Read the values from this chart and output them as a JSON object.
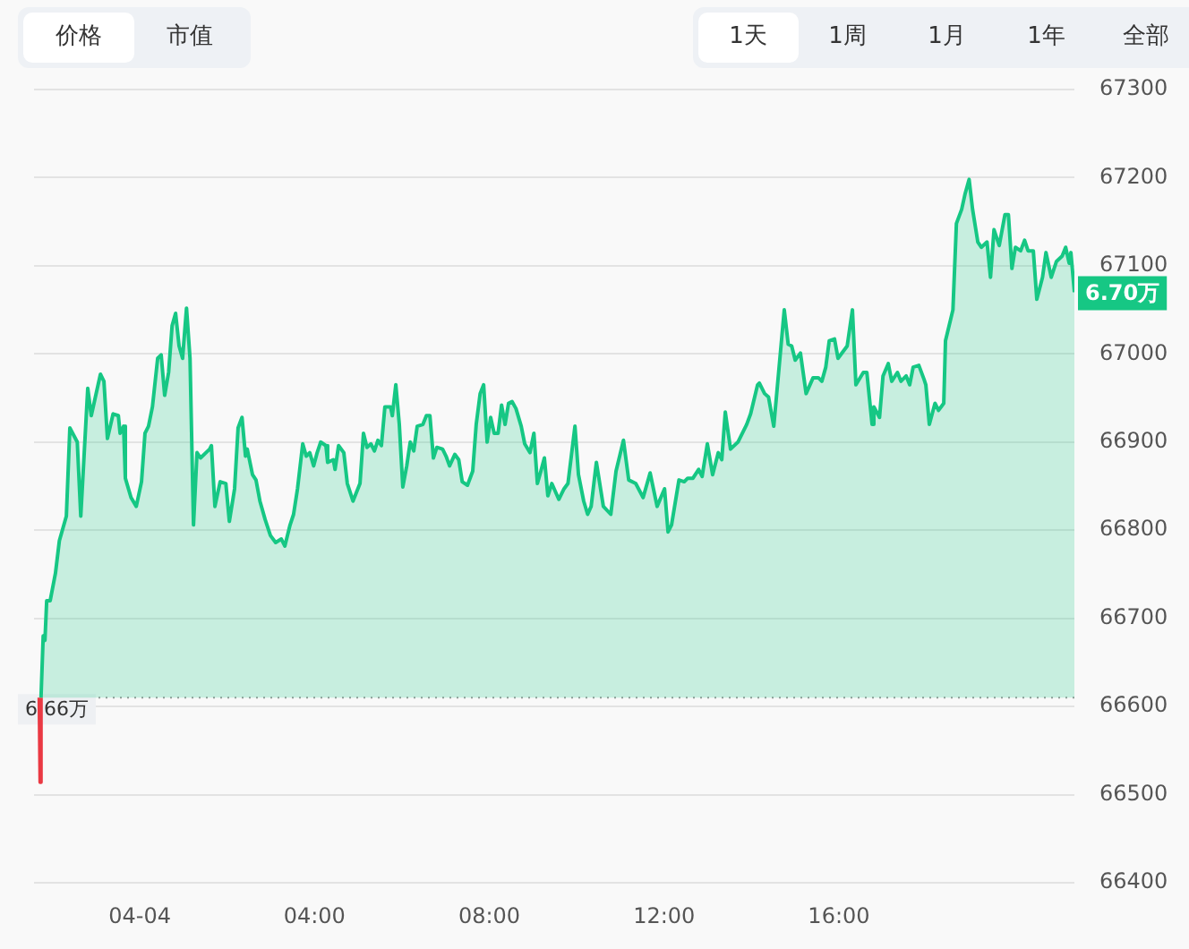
{
  "chart_data": {
    "type": "area",
    "legend": false,
    "grid": "y",
    "marker": "none",
    "xlim": [
      -2.42,
      21.39
    ],
    "ylim": [
      66400,
      67300
    ],
    "xticks": [
      {
        "value": 0,
        "label": "04-04"
      },
      {
        "value": 4,
        "label": "04:00"
      },
      {
        "value": 8,
        "label": "08:00"
      },
      {
        "value": 12,
        "label": "12:00"
      },
      {
        "value": 16,
        "label": "16:00"
      }
    ],
    "yticks": [
      66400,
      66500,
      66600,
      66700,
      66800,
      66900,
      67000,
      67100,
      67200,
      67300
    ],
    "ref_lines": [
      {
        "axis": "y",
        "value": 66610,
        "label": "6.66万",
        "color": "#999999",
        "line_style": "dotted"
      }
    ],
    "annotations": [
      "价格",
      "市值",
      "1天",
      "1周",
      "1月",
      "1年",
      "全部",
      {
        "text": "6.70万",
        "x": 21.39,
        "y": 67070
      }
    ],
    "series": [
      {
        "color": "#16c784",
        "x": [
          -2.26,
          -2.21,
          -2.17,
          -2.13,
          -2.05,
          -1.93,
          -1.84,
          -1.68,
          -1.6,
          -1.43,
          -1.35,
          -1.19,
          -1.11,
          -0.9,
          -0.82,
          -0.74,
          -0.61,
          -0.49,
          -0.45,
          -0.37,
          -0.33,
          -0.2,
          -0.08,
          0.04,
          0.12,
          0.2,
          0.29,
          0.41,
          0.49,
          0.57,
          0.66,
          0.74,
          0.82,
          0.9,
          0.98,
          1.07,
          1.15,
          1.23,
          1.31,
          1.39,
          1.6,
          1.64,
          1.72,
          1.84,
          1.97,
          2.05,
          2.17,
          2.25,
          2.34,
          2.42,
          2.46,
          2.58,
          2.66,
          2.75,
          2.87,
          2.99,
          3.11,
          3.24,
          3.32,
          3.44,
          3.52,
          3.61,
          3.73,
          3.81,
          3.89,
          3.98,
          4.06,
          4.14,
          4.26,
          4.3,
          4.43,
          4.47,
          4.55,
          4.67,
          4.75,
          4.88,
          5.04,
          5.12,
          5.2,
          5.29,
          5.37,
          5.45,
          5.53,
          5.61,
          5.74,
          5.78,
          5.86,
          5.94,
          6.02,
          6.11,
          6.19,
          6.27,
          6.35,
          6.48,
          6.56,
          6.64,
          6.72,
          6.8,
          6.93,
          7.01,
          7.09,
          7.21,
          7.3,
          7.38,
          7.5,
          7.62,
          7.7,
          7.79,
          7.87,
          7.95,
          8.03,
          8.11,
          8.2,
          8.28,
          8.36,
          8.44,
          8.52,
          8.61,
          8.73,
          8.81,
          8.93,
          9.02,
          9.1,
          9.18,
          9.26,
          9.34,
          9.43,
          9.59,
          9.71,
          9.8,
          9.96,
          10.04,
          10.16,
          10.25,
          10.33,
          10.45,
          10.61,
          10.78,
          10.9,
          11.07,
          11.19,
          11.35,
          11.52,
          11.68,
          11.84,
          12.01,
          12.09,
          12.17,
          12.34,
          12.46,
          12.54,
          12.66,
          12.79,
          12.87,
          12.99,
          13.11,
          13.24,
          13.32,
          13.4,
          13.52,
          13.69,
          13.89,
          13.98,
          14.14,
          14.18,
          14.3,
          14.39,
          14.51,
          14.75,
          14.84,
          14.92,
          15.0,
          15.12,
          15.25,
          15.41,
          15.53,
          15.61,
          15.7,
          15.78,
          15.9,
          15.98,
          16.19,
          16.31,
          16.39,
          16.56,
          16.64,
          16.76,
          16.8,
          16.93,
          17.01,
          17.13,
          17.21,
          17.34,
          17.42,
          17.54,
          17.62,
          17.7,
          17.83,
          17.95,
          17.99,
          18.07,
          18.2,
          18.28,
          18.4,
          18.44,
          18.61,
          18.69,
          18.81,
          18.89,
          18.98,
          19.06,
          19.18,
          19.26,
          19.39,
          19.47,
          19.55,
          19.67,
          19.8,
          19.88,
          19.96,
          20.04,
          20.16,
          20.25,
          20.33,
          20.45,
          20.53,
          20.66,
          20.74,
          20.86,
          20.98,
          21.11,
          21.19,
          21.27,
          21.31,
          21.39
        ],
        "values": [
          66610,
          66680,
          66675,
          66720,
          66720,
          66751,
          66788,
          66816,
          66916,
          66900,
          66816,
          66961,
          66930,
          66977,
          66969,
          66904,
          66932,
          66930,
          66910,
          66918,
          66859,
          66837,
          66827,
          66855,
          66910,
          66918,
          66940,
          66995,
          66999,
          66953,
          66979,
          67032,
          67046,
          67009,
          66995,
          67052,
          66995,
          66806,
          66888,
          66882,
          66892,
          66896,
          66827,
          66855,
          66853,
          66810,
          66847,
          66916,
          66928,
          66884,
          66892,
          66863,
          66857,
          66833,
          66812,
          66794,
          66786,
          66790,
          66782,
          66806,
          66818,
          66847,
          66898,
          66884,
          66888,
          66873,
          66888,
          66900,
          66896,
          66877,
          66880,
          66869,
          66896,
          66888,
          66853,
          66833,
          66853,
          66910,
          66894,
          66898,
          66890,
          66902,
          66896,
          66940,
          66940,
          66930,
          66965,
          66920,
          66849,
          66873,
          66900,
          66890,
          66918,
          66920,
          66930,
          66930,
          66882,
          66894,
          66892,
          66884,
          66873,
          66886,
          66880,
          66855,
          66851,
          66867,
          66920,
          66955,
          66965,
          66900,
          66928,
          66910,
          66910,
          66942,
          66920,
          66944,
          66946,
          66938,
          66918,
          66898,
          66888,
          66910,
          66853,
          66867,
          66882,
          66839,
          66853,
          66835,
          66847,
          66853,
          66918,
          66863,
          66833,
          66818,
          66827,
          66877,
          66827,
          66818,
          66867,
          66902,
          66857,
          66853,
          66837,
          66865,
          66827,
          66847,
          66798,
          66806,
          66857,
          66855,
          66859,
          66859,
          66869,
          66861,
          66898,
          66863,
          66888,
          66880,
          66934,
          66892,
          66900,
          66920,
          66932,
          66965,
          66967,
          66955,
          66951,
          66918,
          67050,
          67011,
          67009,
          66993,
          67001,
          66955,
          66973,
          66973,
          66969,
          66985,
          67015,
          67017,
          66995,
          67009,
          67050,
          66965,
          66979,
          66979,
          66920,
          66940,
          66928,
          66975,
          66989,
          66969,
          66979,
          66969,
          66975,
          66965,
          66985,
          66987,
          66971,
          66965,
          66920,
          66944,
          66936,
          66944,
          67015,
          67050,
          67148,
          67164,
          67182,
          67198,
          67164,
          67127,
          67121,
          67127,
          67087,
          67141,
          67123,
          67158,
          67158,
          67097,
          67121,
          67117,
          67129,
          67117,
          67117,
          67062,
          67087,
          67115,
          67087,
          67105,
          67111,
          67121,
          67103,
          67115,
          67070
        ]
      },
      {
        "type": "line",
        "color": "#ea3943",
        "x": [
          -2.3,
          -2.28,
          -2.26
        ],
        "values": [
          66610,
          66514,
          66610
        ]
      }
    ]
  }
}
